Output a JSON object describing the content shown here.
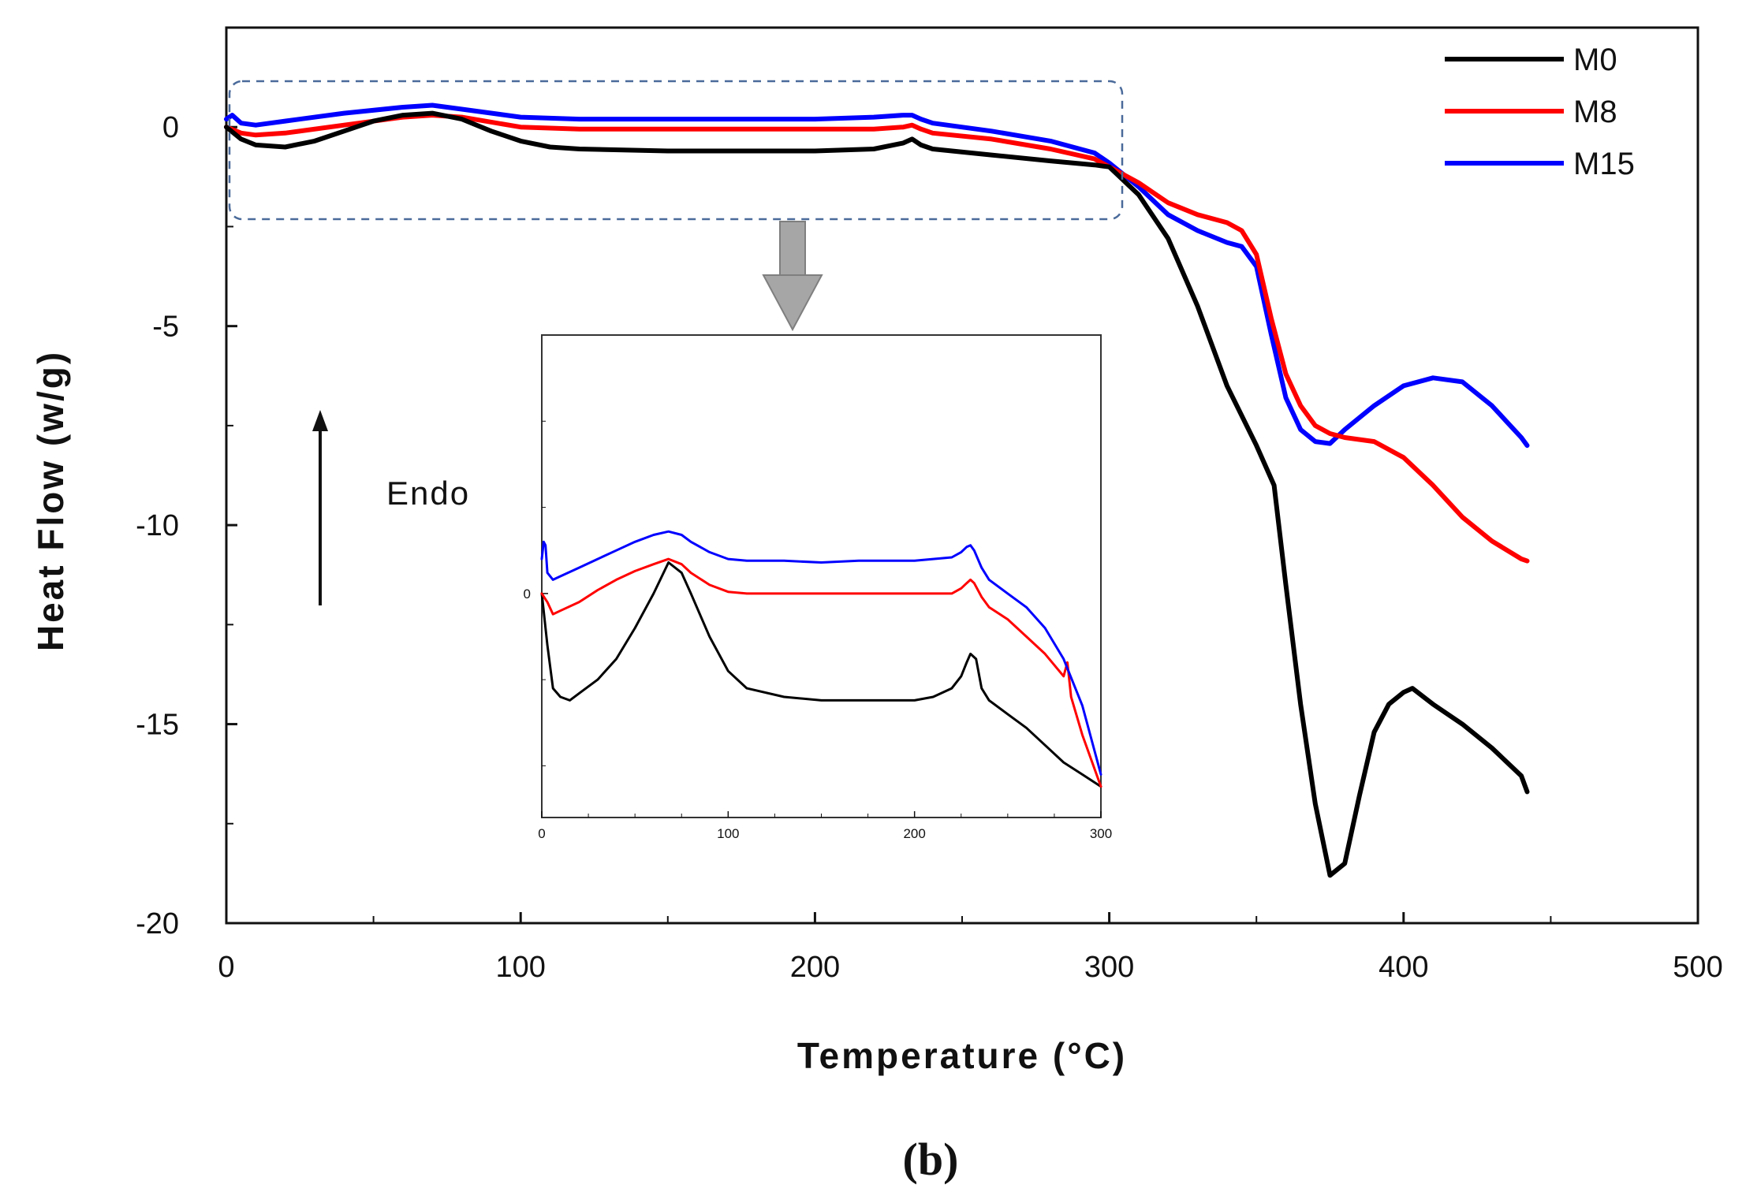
{
  "chart_data": [
    {
      "type": "line",
      "xlabel": "Temperature (°C)",
      "ylabel": "Heat Flow (w/g)",
      "xlim": [
        0,
        500
      ],
      "ylim": [
        -20,
        2.5
      ],
      "xticks": [
        0,
        100,
        200,
        300,
        400,
        500
      ],
      "yticks": [
        0,
        -5,
        -10,
        -15,
        -20
      ],
      "legend_position": "top-right",
      "annotation": "Endo",
      "caption": "(b)",
      "series": [
        {
          "name": "M0",
          "color": "#000000",
          "x": [
            0,
            5,
            10,
            20,
            30,
            40,
            50,
            60,
            70,
            80,
            90,
            100,
            110,
            120,
            150,
            200,
            220,
            230,
            233,
            236,
            240,
            260,
            280,
            295,
            300,
            310,
            320,
            330,
            340,
            350,
            356,
            360,
            365,
            370,
            375,
            380,
            385,
            390,
            395,
            400,
            403,
            410,
            420,
            430,
            440,
            442
          ],
          "y": [
            0,
            -0.3,
            -0.45,
            -0.5,
            -0.35,
            -0.1,
            0.15,
            0.3,
            0.35,
            0.2,
            -0.1,
            -0.35,
            -0.5,
            -0.55,
            -0.6,
            -0.6,
            -0.55,
            -0.4,
            -0.3,
            -0.45,
            -0.55,
            -0.7,
            -0.85,
            -0.95,
            -1.0,
            -1.7,
            -2.8,
            -4.5,
            -6.5,
            -8.0,
            -9.0,
            -11.5,
            -14.5,
            -17.0,
            -18.8,
            -18.5,
            -16.8,
            -15.2,
            -14.5,
            -14.2,
            -14.1,
            -14.5,
            -15.0,
            -15.6,
            -16.3,
            -16.7
          ]
        },
        {
          "name": "M8",
          "color": "#ff0000",
          "x": [
            0,
            5,
            10,
            20,
            40,
            60,
            70,
            80,
            100,
            120,
            150,
            200,
            220,
            230,
            233,
            236,
            240,
            260,
            280,
            295,
            300,
            310,
            320,
            330,
            340,
            345,
            350,
            355,
            360,
            365,
            370,
            375,
            380,
            390,
            400,
            410,
            420,
            430,
            440,
            442
          ],
          "y": [
            0,
            -0.15,
            -0.2,
            -0.15,
            0.05,
            0.25,
            0.3,
            0.25,
            0.0,
            -0.05,
            -0.05,
            -0.05,
            -0.05,
            0.0,
            0.05,
            -0.05,
            -0.15,
            -0.3,
            -0.55,
            -0.8,
            -1.0,
            -1.4,
            -1.9,
            -2.2,
            -2.4,
            -2.6,
            -3.2,
            -4.8,
            -6.2,
            -7.0,
            -7.5,
            -7.7,
            -7.8,
            -7.9,
            -8.3,
            -9.0,
            -9.8,
            -10.4,
            -10.85,
            -10.9
          ]
        },
        {
          "name": "M15",
          "color": "#0000ff",
          "x": [
            0,
            2,
            5,
            10,
            20,
            40,
            60,
            70,
            80,
            100,
            120,
            150,
            200,
            220,
            230,
            233,
            236,
            240,
            260,
            280,
            295,
            300,
            310,
            320,
            330,
            340,
            345,
            350,
            355,
            360,
            365,
            370,
            375,
            380,
            390,
            400,
            410,
            420,
            430,
            440,
            442
          ],
          "y": [
            0.2,
            0.3,
            0.1,
            0.05,
            0.15,
            0.35,
            0.5,
            0.55,
            0.45,
            0.25,
            0.2,
            0.2,
            0.2,
            0.25,
            0.3,
            0.3,
            0.2,
            0.1,
            -0.1,
            -0.35,
            -0.65,
            -0.9,
            -1.5,
            -2.2,
            -2.6,
            -2.9,
            -3.0,
            -3.5,
            -5.2,
            -6.8,
            -7.6,
            -7.9,
            -7.95,
            -7.6,
            -7.0,
            -6.5,
            -6.3,
            -6.4,
            -7.0,
            -7.8,
            -8.0
          ]
        }
      ]
    },
    {
      "type": "line",
      "role": "inset",
      "xlim": [
        0,
        300
      ],
      "xticks": [
        0,
        100,
        200,
        300
      ],
      "yticks": [
        0
      ],
      "series": [
        {
          "name": "M0",
          "color": "#000000",
          "x": [
            0,
            3,
            6,
            10,
            15,
            20,
            30,
            40,
            50,
            60,
            68,
            75,
            80,
            90,
            100,
            110,
            130,
            150,
            170,
            200,
            210,
            220,
            225,
            228,
            230,
            233,
            236,
            240,
            250,
            260,
            270,
            280,
            290,
            300
          ],
          "y": [
            0,
            -0.3,
            -0.55,
            -0.6,
            -0.62,
            -0.58,
            -0.5,
            -0.38,
            -0.2,
            0.0,
            0.18,
            0.12,
            0.0,
            -0.25,
            -0.45,
            -0.55,
            -0.6,
            -0.62,
            -0.62,
            -0.62,
            -0.6,
            -0.55,
            -0.48,
            -0.4,
            -0.35,
            -0.38,
            -0.55,
            -0.62,
            -0.7,
            -0.78,
            -0.88,
            -0.98,
            -1.05,
            -1.12
          ]
        },
        {
          "name": "M8",
          "color": "#ff0000",
          "x": [
            0,
            3,
            6,
            10,
            20,
            30,
            40,
            50,
            60,
            68,
            75,
            80,
            90,
            100,
            110,
            130,
            150,
            170,
            200,
            210,
            220,
            225,
            228,
            230,
            232,
            236,
            240,
            250,
            260,
            270,
            280,
            282,
            284,
            290,
            300
          ],
          "y": [
            0,
            -0.05,
            -0.12,
            -0.1,
            -0.05,
            0.02,
            0.08,
            0.13,
            0.17,
            0.2,
            0.17,
            0.12,
            0.05,
            0.01,
            0.0,
            0.0,
            0.0,
            0.0,
            0.0,
            0.0,
            0.0,
            0.03,
            0.06,
            0.08,
            0.06,
            -0.02,
            -0.08,
            -0.15,
            -0.25,
            -0.35,
            -0.48,
            -0.4,
            -0.6,
            -0.82,
            -1.12
          ]
        },
        {
          "name": "M15",
          "color": "#0000ff",
          "x": [
            0,
            1,
            2,
            3,
            6,
            10,
            20,
            30,
            40,
            50,
            60,
            68,
            75,
            80,
            90,
            100,
            110,
            130,
            150,
            170,
            200,
            210,
            220,
            225,
            228,
            230,
            232,
            236,
            240,
            250,
            260,
            270,
            280,
            290,
            300
          ],
          "y": [
            0.2,
            0.3,
            0.28,
            0.12,
            0.08,
            0.1,
            0.15,
            0.2,
            0.25,
            0.3,
            0.34,
            0.36,
            0.34,
            0.3,
            0.24,
            0.2,
            0.19,
            0.19,
            0.18,
            0.19,
            0.19,
            0.2,
            0.21,
            0.24,
            0.27,
            0.28,
            0.25,
            0.15,
            0.08,
            0.0,
            -0.08,
            -0.2,
            -0.38,
            -0.65,
            -1.05
          ]
        }
      ]
    }
  ]
}
